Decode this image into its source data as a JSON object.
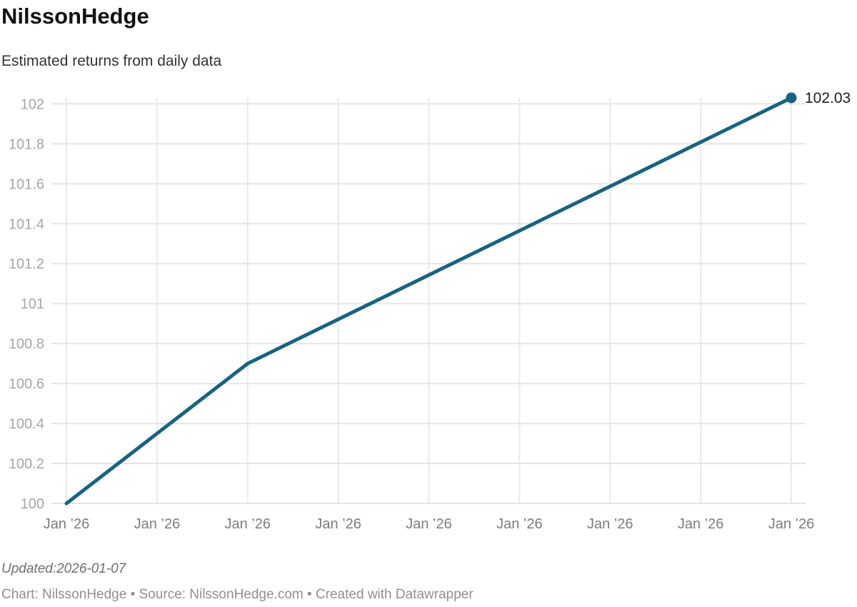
{
  "header": {
    "title": "NilssonHedge",
    "subtitle": "Estimated returns from daily data"
  },
  "chart_data": {
    "type": "line",
    "title": "NilssonHedge",
    "subtitle": "Estimated returns from daily data",
    "x_tick_labels": [
      "Jan ’26",
      "Jan ’26",
      "Jan ’26",
      "Jan ’26",
      "Jan ’26",
      "Jan ’26",
      "Jan ’26",
      "Jan ’26",
      "Jan ’26"
    ],
    "series": [
      {
        "name": "Estimated returns",
        "values": [
          100,
          100.35,
          100.7,
          100.9217,
          101.1433,
          101.365,
          101.5867,
          101.8083,
          102.03
        ]
      }
    ],
    "y_ticks": [
      100,
      100.2,
      100.4,
      100.6,
      100.8,
      101,
      101.2,
      101.4,
      101.6,
      101.8,
      102
    ],
    "ylim": [
      100,
      102.03
    ],
    "grid": true,
    "legend_position": "none",
    "end_label": "102.03",
    "line_color": "#186380",
    "end_label_color": "#1c1c1c",
    "grid_color": "#e5e5e5",
    "vgrid_color": "#e9e9e9"
  },
  "footer": {
    "updated": "Updated:2026-01-07",
    "byline": "Chart: NilssonHedge • Source: NilssonHedge.com • Created with Datawrapper"
  }
}
